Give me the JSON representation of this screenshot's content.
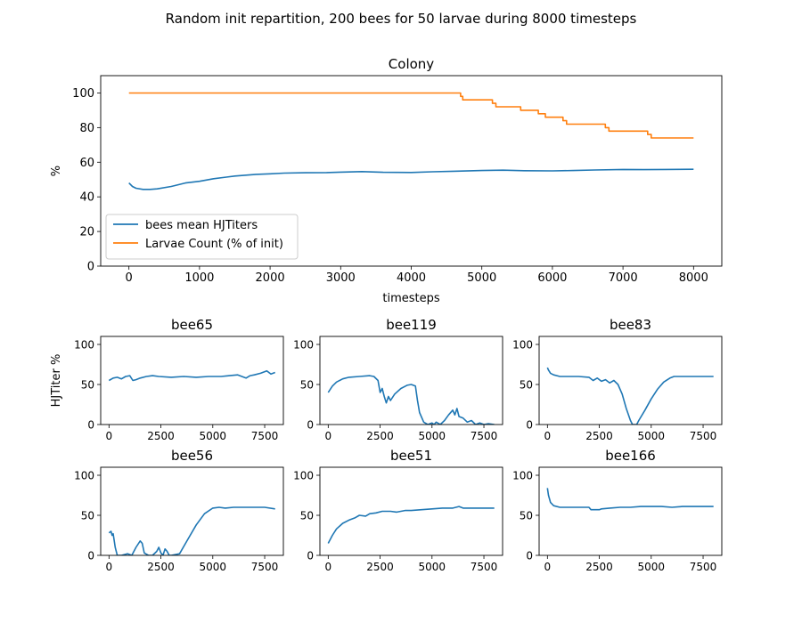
{
  "figure": {
    "suptitle": "Random init repartition, 200 bees for 50 larvae during 8000 timesteps"
  },
  "colors": {
    "bees": "#1f77b4",
    "larvae": "#ff7f0e"
  },
  "chart_data": [
    {
      "type": "line",
      "title": "Colony",
      "xlabel": "timesteps",
      "ylabel": "%",
      "xlim": [
        -400,
        8400
      ],
      "ylim": [
        0,
        110
      ],
      "xticks": [
        0,
        1000,
        2000,
        3000,
        4000,
        5000,
        6000,
        7000,
        8000
      ],
      "yticks": [
        0,
        20,
        40,
        60,
        80,
        100
      ],
      "legend": "lower-left",
      "series": [
        {
          "name": "bees mean HJTiters",
          "x": [
            0,
            50,
            100,
            200,
            300,
            400,
            600,
            800,
            1000,
            1200,
            1500,
            1800,
            2000,
            2200,
            2500,
            2800,
            3000,
            3300,
            3600,
            4000,
            4300,
            4600,
            5000,
            5300,
            5600,
            6000,
            6300,
            6600,
            7000,
            7300,
            7600,
            8000
          ],
          "y": [
            48,
            46,
            45,
            44.3,
            44.3,
            44.6,
            46,
            48,
            49,
            50.5,
            52,
            53,
            53.3,
            53.7,
            53.9,
            54,
            54.3,
            54.6,
            54.2,
            54.1,
            54.5,
            54.8,
            55.2,
            55.4,
            55.1,
            55.0,
            55.2,
            55.5,
            55.8,
            55.7,
            55.8,
            55.9
          ]
        },
        {
          "name": "Larvae Count (% of init)",
          "step": true,
          "x": [
            0,
            4700,
            4730,
            5150,
            5200,
            5550,
            5800,
            5900,
            6150,
            6200,
            6750,
            6800,
            7350,
            7400,
            8000
          ],
          "y": [
            100,
            98,
            96,
            94,
            92,
            90,
            88,
            86,
            84,
            82,
            80,
            78,
            76,
            74,
            74
          ]
        }
      ]
    },
    {
      "type": "line",
      "title": "bee65",
      "ylabel": "HJTiter %",
      "xlim": [
        -400,
        8400
      ],
      "ylim": [
        0,
        110
      ],
      "xticks": [
        0,
        2500,
        5000,
        7500
      ],
      "yticks": [
        0,
        50,
        100
      ],
      "x": [
        0,
        200,
        400,
        600,
        800,
        1000,
        1150,
        1300,
        1500,
        1800,
        2100,
        2400,
        3000,
        3600,
        4200,
        4800,
        5400,
        5800,
        6200,
        6400,
        6600,
        6800,
        7000,
        7300,
        7600,
        7800,
        8000
      ],
      "y": [
        55,
        58,
        59,
        57,
        60,
        61,
        55,
        56,
        58,
        60,
        61,
        60,
        59,
        60,
        59,
        60,
        60,
        61,
        62,
        60,
        58,
        61,
        62,
        64,
        67,
        63,
        65
      ]
    },
    {
      "type": "line",
      "title": "bee119",
      "xlim": [
        -400,
        8400
      ],
      "ylim": [
        0,
        110
      ],
      "xticks": [
        0,
        2500,
        5000,
        7500
      ],
      "yticks": [
        0,
        50,
        100
      ],
      "x": [
        0,
        200,
        400,
        700,
        1000,
        1500,
        2000,
        2200,
        2400,
        2500,
        2600,
        2700,
        2800,
        2900,
        3000,
        3200,
        3500,
        3800,
        4000,
        4200,
        4300,
        4400,
        4600,
        4800,
        5000,
        5100,
        5200,
        5400,
        5600,
        5800,
        6000,
        6100,
        6200,
        6300,
        6500,
        6700,
        6900,
        7100,
        7300,
        7500,
        7700,
        8000
      ],
      "y": [
        40,
        48,
        53,
        57,
        59,
        60,
        61,
        60,
        55,
        40,
        45,
        35,
        27,
        35,
        30,
        38,
        45,
        49,
        50,
        48,
        30,
        15,
        3,
        0,
        2,
        0,
        3,
        0,
        5,
        12,
        18,
        12,
        20,
        10,
        8,
        3,
        5,
        0,
        2,
        0,
        1,
        0
      ]
    },
    {
      "type": "line",
      "title": "bee83",
      "xlim": [
        -400,
        8400
      ],
      "ylim": [
        0,
        110
      ],
      "xticks": [
        0,
        2500,
        5000,
        7500
      ],
      "yticks": [
        0,
        50,
        100
      ],
      "x": [
        0,
        50,
        150,
        300,
        600,
        1000,
        1500,
        2000,
        2200,
        2400,
        2600,
        2800,
        3000,
        3200,
        3400,
        3600,
        3800,
        4000,
        4100,
        4300,
        4400,
        4700,
        5000,
        5300,
        5600,
        5900,
        6100,
        6300,
        7000,
        8000
      ],
      "y": [
        71,
        68,
        64,
        62,
        60,
        60,
        60,
        59,
        55,
        58,
        54,
        56,
        52,
        55,
        50,
        38,
        20,
        5,
        0,
        0,
        5,
        18,
        32,
        44,
        53,
        58,
        60,
        60,
        60,
        60
      ]
    },
    {
      "type": "line",
      "title": "bee56",
      "xlim": [
        -400,
        8400
      ],
      "ylim": [
        0,
        110
      ],
      "xticks": [
        0,
        2500,
        5000,
        7500
      ],
      "yticks": [
        0,
        50,
        100
      ],
      "x": [
        0,
        100,
        150,
        200,
        300,
        400,
        500,
        600,
        900,
        1100,
        1300,
        1500,
        1600,
        1700,
        1900,
        2100,
        2300,
        2400,
        2500,
        2600,
        2700,
        2800,
        2900,
        3000,
        3400,
        3800,
        4200,
        4600,
        5000,
        5300,
        5600,
        6000,
        6500,
        7000,
        7500,
        8000
      ],
      "y": [
        28,
        30,
        25,
        27,
        10,
        0,
        0,
        0,
        2,
        0,
        10,
        18,
        15,
        3,
        0,
        0,
        5,
        10,
        3,
        0,
        8,
        5,
        0,
        0,
        2,
        20,
        38,
        52,
        59,
        60,
        59,
        60,
        60,
        60,
        60,
        58
      ]
    },
    {
      "type": "line",
      "title": "bee51",
      "xlim": [
        -400,
        8400
      ],
      "ylim": [
        0,
        110
      ],
      "xticks": [
        0,
        2500,
        5000,
        7500
      ],
      "yticks": [
        0,
        50,
        100
      ],
      "x": [
        0,
        200,
        400,
        700,
        1000,
        1300,
        1500,
        1800,
        2000,
        2300,
        2600,
        3000,
        3300,
        3700,
        4000,
        4500,
        5000,
        5500,
        6000,
        6300,
        6500,
        7000,
        7500,
        8000
      ],
      "y": [
        15,
        25,
        33,
        40,
        44,
        47,
        50,
        49,
        52,
        53,
        55,
        55,
        54,
        56,
        56,
        57,
        58,
        59,
        59,
        61,
        59,
        59,
        59,
        59
      ]
    },
    {
      "type": "line",
      "title": "bee166",
      "xlim": [
        -400,
        8400
      ],
      "ylim": [
        0,
        110
      ],
      "xticks": [
        0,
        2500,
        5000,
        7500
      ],
      "yticks": [
        0,
        50,
        100
      ],
      "x": [
        0,
        50,
        150,
        300,
        600,
        1000,
        1500,
        2000,
        2100,
        2500,
        2600,
        3000,
        3500,
        4000,
        4500,
        5000,
        5500,
        6000,
        6500,
        7000,
        7500,
        8000
      ],
      "y": [
        84,
        75,
        66,
        62,
        60,
        60,
        60,
        60,
        57,
        57,
        58,
        59,
        60,
        60,
        61,
        61,
        61,
        60,
        61,
        61,
        61,
        61
      ]
    }
  ]
}
